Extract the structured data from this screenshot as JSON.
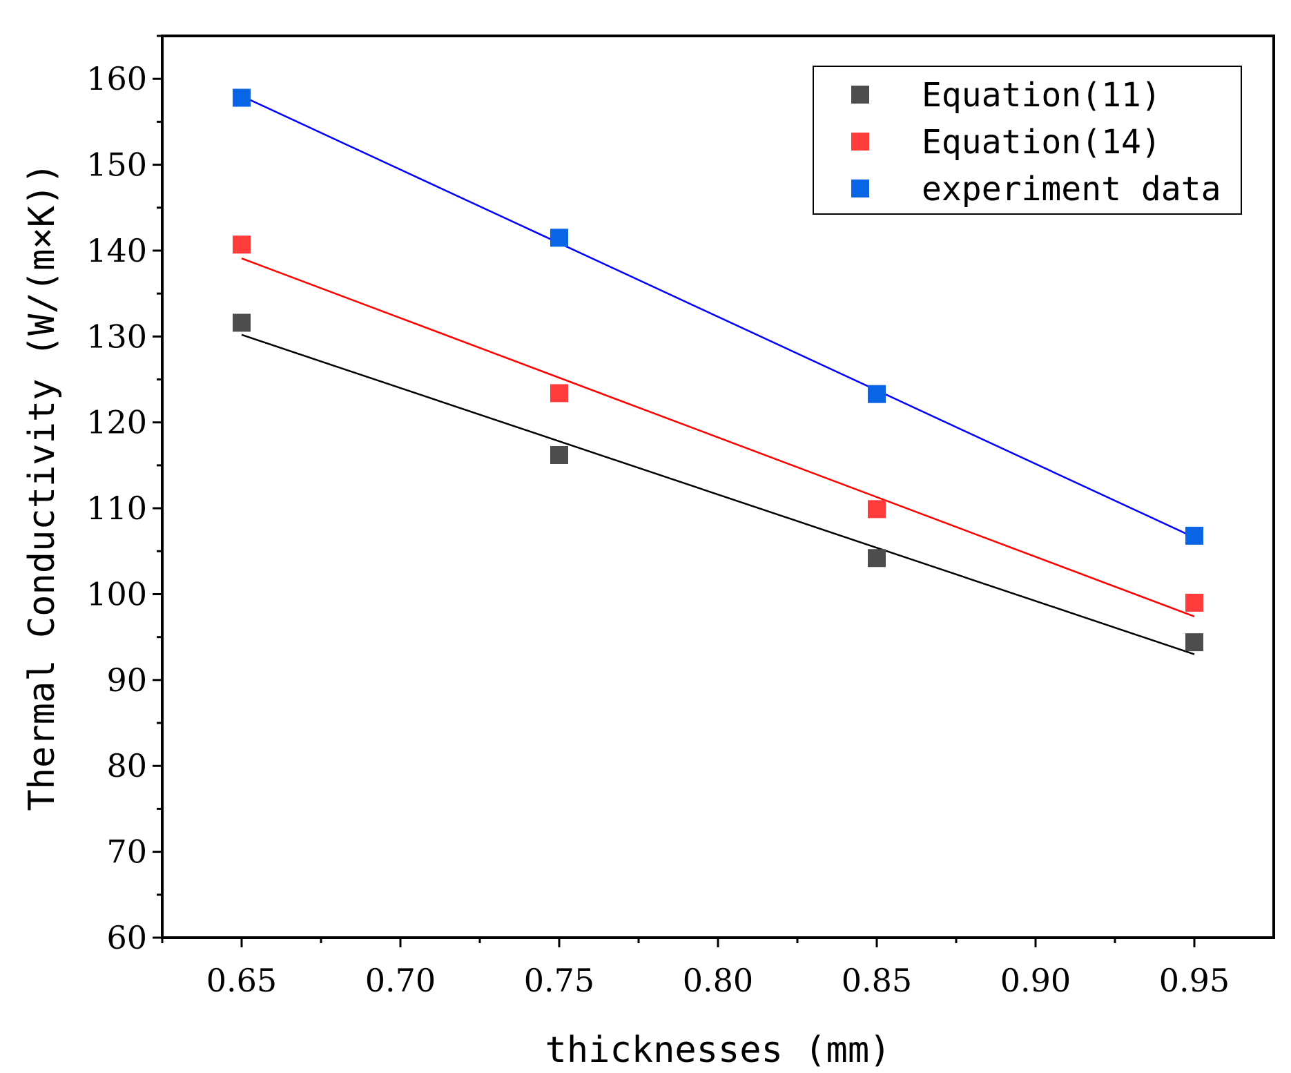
{
  "chart_data": {
    "type": "scatter",
    "title": "",
    "xlabel": "thicknesses (mm)",
    "ylabel": "Thermal Conductivity (W/(m×K))",
    "xlim": [
      0.625,
      0.975
    ],
    "ylim": [
      60,
      165
    ],
    "xticks": [
      0.65,
      0.7,
      0.75,
      0.8,
      0.85,
      0.9,
      0.95
    ],
    "xtick_labels": [
      "0.65",
      "0.70",
      "0.75",
      "0.80",
      "0.85",
      "0.90",
      "0.95"
    ],
    "yticks": [
      60,
      70,
      80,
      90,
      100,
      110,
      120,
      130,
      140,
      150,
      160
    ],
    "ytick_labels": [
      "60",
      "70",
      "80",
      "90",
      "100",
      "110",
      "120",
      "130",
      "140",
      "150",
      "160"
    ],
    "grid": false,
    "legend_position": "top-right",
    "x": [
      0.65,
      0.75,
      0.85,
      0.95
    ],
    "series": [
      {
        "name": "Equation(11)",
        "color": "#4d4d4d",
        "line_color": "#000000",
        "values": [
          131.6,
          116.2,
          104.2,
          94.4
        ],
        "fit": [
          130.2,
          93.0
        ]
      },
      {
        "name": "Equation(14)",
        "color": "#ff3b3b",
        "line_color": "#ff0000",
        "values": [
          140.7,
          123.4,
          109.9,
          99.0
        ],
        "fit": [
          139.1,
          97.4
        ]
      },
      {
        "name": "experiment data",
        "color": "#0a64e6",
        "line_color": "#0000ff",
        "values": [
          157.8,
          141.5,
          123.3,
          106.8
        ],
        "fit": [
          158.0,
          106.6
        ]
      }
    ]
  }
}
